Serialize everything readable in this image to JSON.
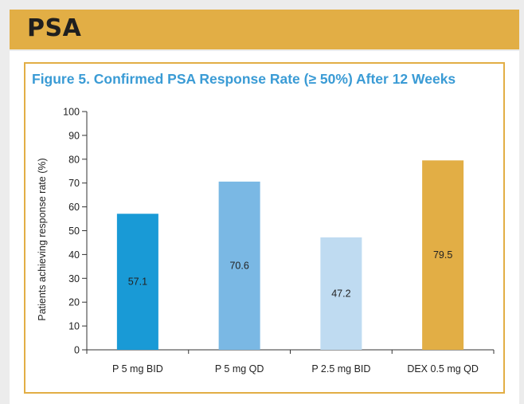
{
  "header": {
    "title": "PSA"
  },
  "chart_data": {
    "type": "bar",
    "title": "Figure 5. Confirmed PSA Response Rate (≥ 50%) After 12 Weeks",
    "xlabel": "",
    "ylabel": "Patients achieving response rate (%)",
    "ylim": [
      0,
      100
    ],
    "yticks": [
      0,
      10,
      20,
      30,
      40,
      50,
      60,
      70,
      80,
      90,
      100
    ],
    "categories": [
      "P 5 mg BID",
      "P 5 mg QD",
      "P 2.5 mg BID",
      "DEX 0.5 mg QD"
    ],
    "values": [
      57.1,
      70.6,
      47.2,
      79.5
    ],
    "value_labels": [
      "57.1",
      "70.6",
      "47.2",
      "79.5"
    ],
    "colors": [
      "#199ad6",
      "#7ab8e4",
      "#bfdbf1",
      "#e2ae45"
    ],
    "grid": false,
    "legend": "none"
  }
}
